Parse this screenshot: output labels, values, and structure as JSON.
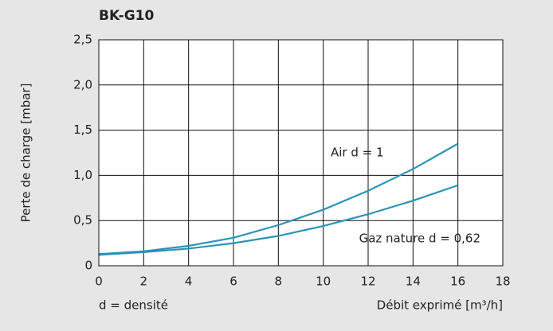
{
  "chart_data": {
    "type": "line",
    "title": "BK-G10",
    "y_label": "Perte de charge [mbar]",
    "x_label": "Débit exprimé [m³/h]",
    "note": "d = densité",
    "x": [
      0,
      2,
      4,
      6,
      8,
      10,
      12,
      14,
      16
    ],
    "series": [
      {
        "name": "Air d = 1",
        "color": "#2a93b8",
        "values": [
          0.13,
          0.16,
          0.22,
          0.31,
          0.45,
          0.62,
          0.83,
          1.07,
          1.35
        ]
      },
      {
        "name": "Gaz nature d = 0,62",
        "color": "#2a93b8",
        "values": [
          0.12,
          0.15,
          0.19,
          0.25,
          0.33,
          0.44,
          0.57,
          0.72,
          0.89
        ]
      }
    ],
    "xlim": [
      0,
      18
    ],
    "xticks": [
      0,
      2,
      4,
      6,
      8,
      10,
      12,
      14,
      16,
      18
    ],
    "ylim": [
      0,
      2.5
    ],
    "yticks": [
      0,
      {
        "value": 0.5,
        "label": "0,5"
      },
      {
        "value": 1,
        "label": "1,0"
      },
      {
        "value": 1.5,
        "label": "1,5"
      },
      {
        "value": 2,
        "label": "2,0"
      },
      {
        "value": 2.5,
        "label": "2,5"
      }
    ],
    "grid": true
  }
}
